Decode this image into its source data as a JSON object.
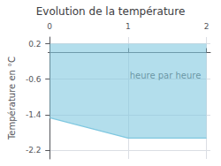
{
  "chart_data": {
    "type": "area",
    "title": "Evolution de la température",
    "ylabel": "Température en °C",
    "x": [
      0,
      1.0,
      2.0
    ],
    "values": [
      -1.47,
      -1.93,
      -1.93
    ],
    "y_top": 0.2,
    "color": "#80c8e0",
    "xlim": [
      -0.02,
      2.05
    ],
    "xticks": [
      0,
      1,
      2
    ],
    "ylim": [
      -2.4,
      0.35
    ],
    "yticks": [
      0.2,
      -0.6,
      -1.4,
      -2.2
    ],
    "grid": true,
    "annotations": [
      {
        "text": "heure par heure",
        "x": 1.02,
        "y": -0.52
      }
    ]
  }
}
